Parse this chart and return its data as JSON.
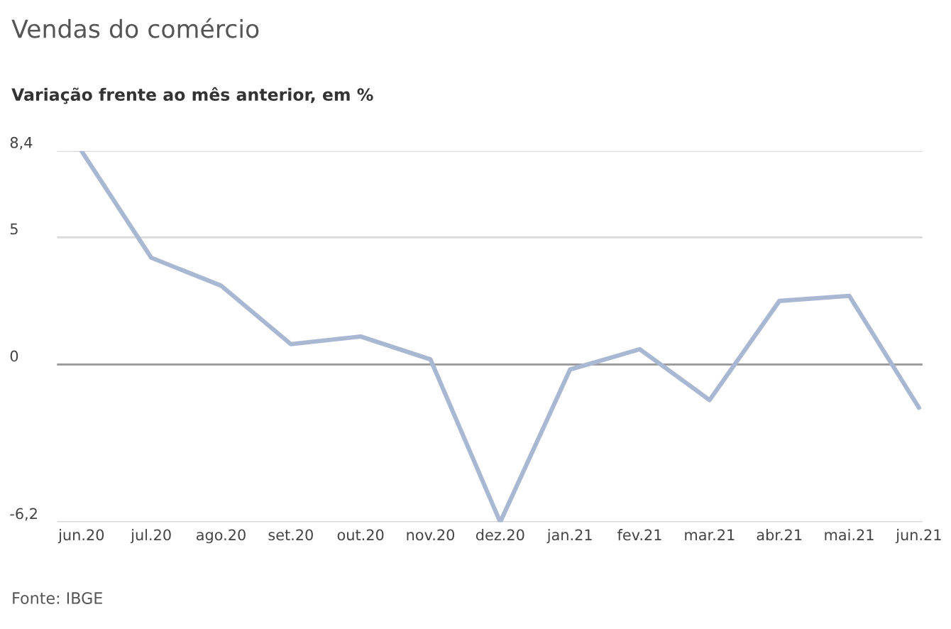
{
  "chart_data": {
    "type": "line",
    "title": "Vendas do comércio",
    "subtitle": "Variação frente ao mês anterior, em %",
    "categories": [
      "jun.20",
      "jul.20",
      "ago.20",
      "set.20",
      "out.20",
      "nov.20",
      "dez.20",
      "jan.21",
      "fev.21",
      "mar.21",
      "abr.21",
      "mai.21",
      "jun.21"
    ],
    "series": [
      {
        "color": "#a9b8d2",
        "values": [
          8.4,
          4.2,
          3.1,
          0.8,
          1.1,
          0.2,
          -6.2,
          -0.2,
          0.6,
          -1.4,
          2.5,
          2.7,
          -1.7
        ]
      }
    ],
    "ylim": [
      -6.2,
      8.4
    ],
    "yticks": [
      {
        "value": -6.2,
        "label": "-6,2"
      },
      0,
      5,
      {
        "value": 8.4,
        "label": "8,4"
      }
    ],
    "grid": "y",
    "marker": "none",
    "line_style": "solid",
    "ref_lines": [
      {
        "axis": "y",
        "value": 0,
        "color": "#999999"
      }
    ],
    "annotations": [
      "Fonte: IBGE"
    ]
  }
}
